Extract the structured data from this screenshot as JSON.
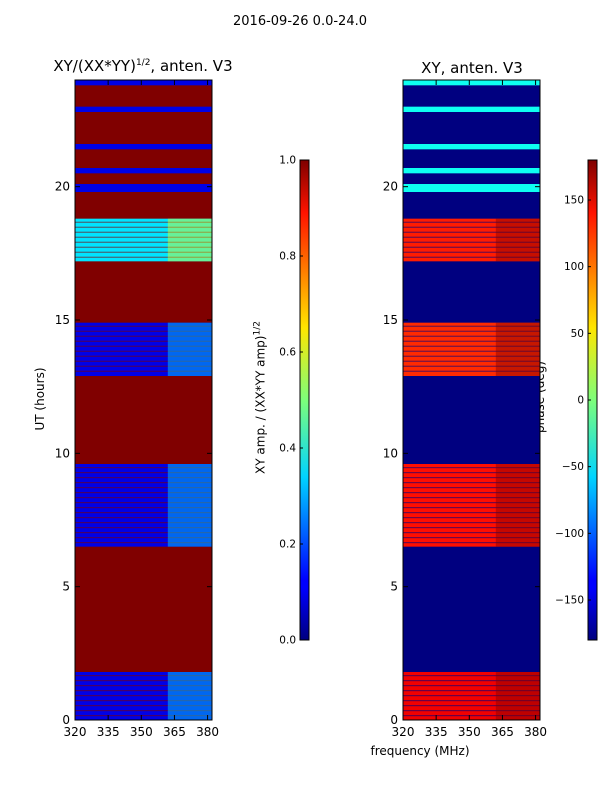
{
  "suptitle": "2016-09-26 0.0-24.0",
  "left_title_pre": "XY/(XX*YY)",
  "left_title_sup": "1/2",
  "left_title_post": ", anten. V3",
  "right_title": "XY, anten. V3",
  "ylabel": "UT (hours)",
  "xlabel": "frequency (MHz)",
  "cb1_label_pre": "XY amp. / (XX*YY amp)",
  "cb1_label_sup": "1/2",
  "cb2_label": "phase (deg)",
  "chart_data": [
    {
      "type": "heatmap",
      "title": "XY/(XX*YY)^1/2, anten. V3",
      "xlabel": "",
      "ylabel": "UT (hours)",
      "xlim": [
        320,
        382
      ],
      "ylim": [
        0,
        24
      ],
      "xticks": [
        320,
        335,
        350,
        365,
        380
      ],
      "yticks": [
        0,
        5,
        10,
        15,
        20
      ],
      "colormap": "jet",
      "colorbar": {
        "label": "XY amp. / (XX*YY amp)^1/2",
        "range": [
          0.0,
          1.0
        ],
        "ticks": [
          "0.0",
          "0.2",
          "0.4",
          "0.6",
          "0.8",
          "1.0"
        ]
      },
      "background_value": 1.0,
      "bands": [
        {
          "start": 0.0,
          "end": 1.8,
          "value": 0.1
        },
        {
          "start": 6.5,
          "end": 9.6,
          "value": 0.1
        },
        {
          "start": 12.9,
          "end": 14.9,
          "value": 0.1
        },
        {
          "start": 17.2,
          "end": 18.8,
          "value": 0.35
        },
        {
          "start": 19.8,
          "end": 20.1,
          "value": 0.1
        },
        {
          "start": 20.5,
          "end": 20.7,
          "value": 0.1
        },
        {
          "start": 21.4,
          "end": 21.6,
          "value": 0.1
        },
        {
          "start": 22.8,
          "end": 23.0,
          "value": 0.1
        },
        {
          "start": 23.8,
          "end": 24.0,
          "value": 0.1
        }
      ]
    },
    {
      "type": "heatmap",
      "title": "XY, anten. V3",
      "xlabel": "frequency (MHz)",
      "ylabel": "",
      "xlim": [
        320,
        382
      ],
      "ylim": [
        0,
        24
      ],
      "xticks": [
        320,
        335,
        350,
        365,
        380
      ],
      "yticks": [
        0,
        5,
        10,
        15,
        20
      ],
      "colormap": "jet",
      "colorbar": {
        "label": "phase (deg)",
        "range": [
          -180,
          180
        ],
        "ticks": [
          "150",
          "100",
          "50",
          "0",
          "−50",
          "−100",
          "−150"
        ]
      },
      "background_value": -180,
      "bands": [
        {
          "start": 0.0,
          "end": 1.8,
          "value": 140
        },
        {
          "start": 6.5,
          "end": 9.6,
          "value": 130
        },
        {
          "start": 12.9,
          "end": 14.9,
          "value": 120
        },
        {
          "start": 17.2,
          "end": 18.8,
          "value": 125
        },
        {
          "start": 19.8,
          "end": 20.1,
          "value": -40
        },
        {
          "start": 20.5,
          "end": 20.7,
          "value": -40
        },
        {
          "start": 21.4,
          "end": 21.6,
          "value": -40
        },
        {
          "start": 22.8,
          "end": 23.0,
          "value": -40
        },
        {
          "start": 23.8,
          "end": 24.0,
          "value": -40
        }
      ]
    }
  ]
}
